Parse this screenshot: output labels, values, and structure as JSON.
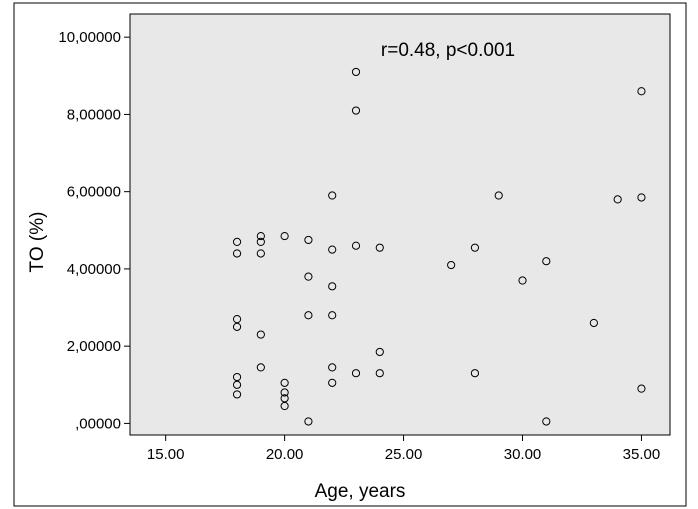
{
  "chart_data": {
    "type": "scatter",
    "xlabel": "Age, years",
    "ylabel": "TO (%)",
    "annotation": "r=0.48, p<0.001",
    "xlim": [
      13.5,
      36.2
    ],
    "ylim": [
      -0.3,
      10.6
    ],
    "x_ticks": [
      15,
      20,
      25,
      30,
      35
    ],
    "x_tick_labels": [
      "15.00",
      "20.00",
      "25.00",
      "30.00",
      "35.00"
    ],
    "y_ticks": [
      0,
      2,
      4,
      6,
      8,
      10
    ],
    "y_tick_labels": [
      ",00000",
      "2,00000",
      "4,00000",
      "6,00000",
      "8,00000",
      "10,00000"
    ],
    "grid": false,
    "colors": {
      "plot_background": "#e8e8e8",
      "marker_stroke": "#000000"
    },
    "series": [
      {
        "points": [
          {
            "x": 18,
            "y": 4.7
          },
          {
            "x": 18,
            "y": 4.4
          },
          {
            "x": 18,
            "y": 2.7
          },
          {
            "x": 18,
            "y": 2.5
          },
          {
            "x": 18,
            "y": 1.2
          },
          {
            "x": 18,
            "y": 1.0
          },
          {
            "x": 18,
            "y": 0.75
          },
          {
            "x": 19,
            "y": 4.85
          },
          {
            "x": 19,
            "y": 4.7
          },
          {
            "x": 19,
            "y": 4.4
          },
          {
            "x": 19,
            "y": 2.3
          },
          {
            "x": 19,
            "y": 1.45
          },
          {
            "x": 20,
            "y": 4.85
          },
          {
            "x": 20,
            "y": 1.05
          },
          {
            "x": 20,
            "y": 0.8
          },
          {
            "x": 20,
            "y": 0.65
          },
          {
            "x": 20,
            "y": 0.45
          },
          {
            "x": 21,
            "y": 4.75
          },
          {
            "x": 21,
            "y": 3.8
          },
          {
            "x": 21,
            "y": 2.8
          },
          {
            "x": 21,
            "y": 0.05
          },
          {
            "x": 22,
            "y": 5.9
          },
          {
            "x": 22,
            "y": 4.5
          },
          {
            "x": 22,
            "y": 3.55
          },
          {
            "x": 22,
            "y": 2.8
          },
          {
            "x": 22,
            "y": 1.45
          },
          {
            "x": 22,
            "y": 1.05
          },
          {
            "x": 23,
            "y": 9.1
          },
          {
            "x": 23,
            "y": 8.1
          },
          {
            "x": 23,
            "y": 4.6
          },
          {
            "x": 23,
            "y": 1.3
          },
          {
            "x": 24,
            "y": 4.55
          },
          {
            "x": 24,
            "y": 1.85
          },
          {
            "x": 24,
            "y": 1.3
          },
          {
            "x": 27,
            "y": 4.1
          },
          {
            "x": 28,
            "y": 4.55
          },
          {
            "x": 28,
            "y": 1.3
          },
          {
            "x": 29,
            "y": 5.9
          },
          {
            "x": 30,
            "y": 3.7
          },
          {
            "x": 31,
            "y": 4.2
          },
          {
            "x": 31,
            "y": 0.05
          },
          {
            "x": 33,
            "y": 2.6
          },
          {
            "x": 34,
            "y": 5.8
          },
          {
            "x": 35,
            "y": 8.6
          },
          {
            "x": 35,
            "y": 5.85
          },
          {
            "x": 35,
            "y": 0.9
          }
        ]
      }
    ]
  }
}
